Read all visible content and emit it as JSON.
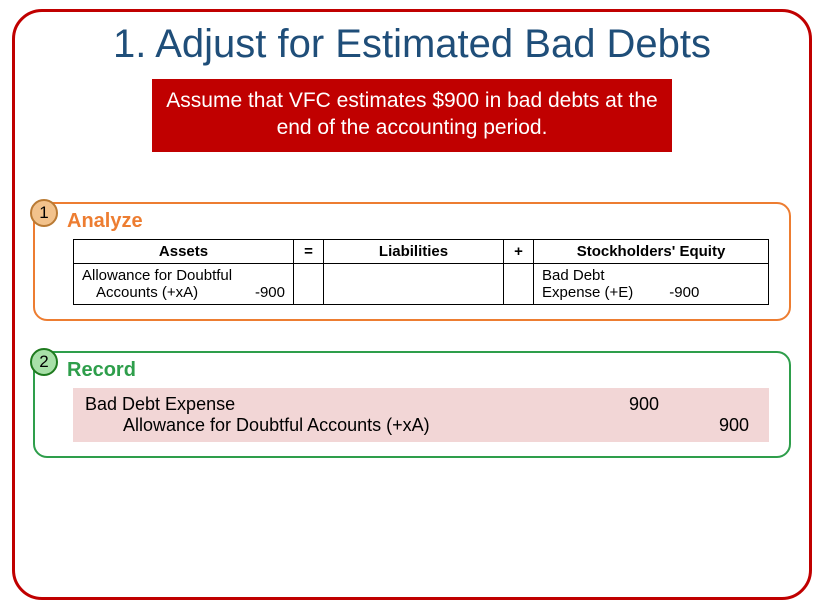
{
  "title": "1. Adjust for Estimated Bad Debts",
  "assumption": "Assume that VFC estimates $900 in bad debts at the end of the accounting period.",
  "analyze": {
    "badge": "1",
    "label": "Analyze",
    "headers": {
      "assets": "Assets",
      "eq": "=",
      "liabilities": "Liabilities",
      "plus": "+",
      "equity": "Stockholders' Equity"
    },
    "row": {
      "asset_line1": "Allowance for Doubtful",
      "asset_line2_label": "Accounts (+xA)",
      "asset_amount": "-900",
      "liabilities": "",
      "se_line1": "Bad Debt",
      "se_line2_label": "Expense (+E)",
      "se_amount": "-900"
    }
  },
  "record": {
    "badge": "2",
    "label": "Record",
    "entries": [
      {
        "account": "Bad Debt Expense",
        "debit": "900",
        "credit": "",
        "indent": false
      },
      {
        "account": "Allowance for Doubtful Accounts (+xA)",
        "debit": "",
        "credit": "900",
        "indent": true
      }
    ]
  },
  "colors": {
    "frame": "#c00000",
    "title": "#1f4e79",
    "assumption_bg": "#c00000",
    "analyze_border": "#ed7d31",
    "record_border": "#2e9e4b",
    "journal_bg": "#f2d6d6"
  }
}
